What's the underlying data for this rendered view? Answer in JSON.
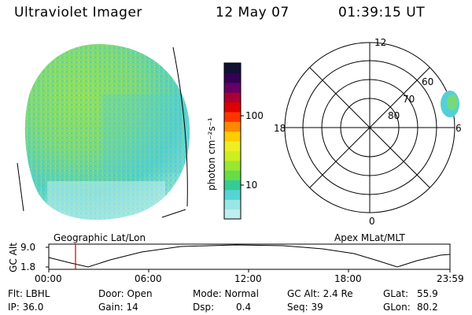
{
  "header": {
    "title": "Ultraviolet Imager",
    "date": "12 May 07",
    "time": "01:39:15 UT"
  },
  "colorbar": {
    "label": "photon cm⁻²s⁻¹",
    "ticks": [
      "100",
      "10"
    ],
    "colors": [
      "#bfeeee",
      "#99e6e6",
      "#55d4d4",
      "#33cc99",
      "#66dd44",
      "#99e633",
      "#ccee22",
      "#eeee22",
      "#ffcc00",
      "#ff8800",
      "#ff3300",
      "#dd0000",
      "#aa0033",
      "#660066",
      "#330055",
      "#111133"
    ]
  },
  "polar_plot": {
    "ring_labels": [
      "80",
      "70",
      "60"
    ],
    "clock_labels": {
      "top": "12",
      "bottom": "0",
      "left": "18",
      "right": "6"
    }
  },
  "timeline": {
    "y_axis_label": "GC Alt",
    "y_ticks": [
      "9.0",
      "1.8"
    ],
    "left_label": "Geographic Lat/Lon",
    "right_label": "Apex MLat/MLT",
    "x_ticks": [
      "00:00",
      "06:00",
      "12:00",
      "18:00",
      "23:59"
    ],
    "marker_time": "01:39"
  },
  "info": {
    "flt": "Flt: LBHL",
    "ip": "IP: 36.0",
    "door": "Door: Open",
    "gain": "Gain: 14",
    "mode": "Mode: Normal",
    "dsp_label": "Dsp:",
    "dsp_value": "0.4",
    "gc_alt": "GC Alt: 2.4 Re",
    "seq": "Seq: 39",
    "glat_label": "GLat:",
    "glat_value": "55.9",
    "glon_label": "GLon:",
    "glon_value": "80.2"
  }
}
